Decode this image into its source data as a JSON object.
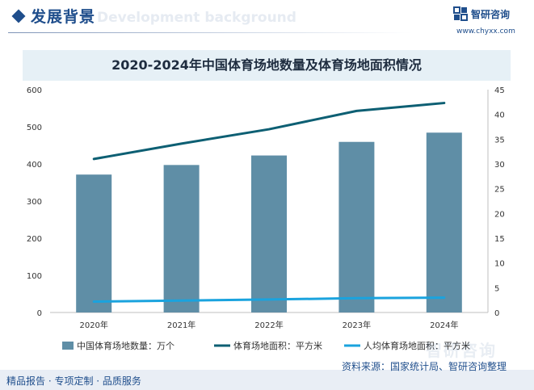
{
  "header": {
    "title": "发展背景",
    "subtitle": "Development background"
  },
  "logo": {
    "name": "智研咨询",
    "url": "www.chyxx.com"
  },
  "watermark": "智研咨询",
  "chart_data": {
    "type": "bar+line",
    "title": "2020-2024年中国体育场地数量及体育场地面积情况",
    "categories": [
      "2020年",
      "2021年",
      "2022年",
      "2023年",
      "2024年"
    ],
    "series": [
      {
        "name": "中国体育场地数量：万个",
        "type": "bar",
        "axis": "left",
        "color": "#5f8ea6",
        "values": [
          371.3,
          397.1,
          422.7,
          459.3,
          484.2
        ]
      },
      {
        "name": "体育场地面积：平方米",
        "type": "line",
        "axis": "right",
        "color": "#0d5f73",
        "values": [
          31.0,
          34.1,
          37.0,
          40.7,
          42.3
        ]
      },
      {
        "name": "人均体育场地面积：平方米",
        "type": "line",
        "axis": "right",
        "color": "#1aa3de",
        "values": [
          2.2,
          2.41,
          2.62,
          2.89,
          3.0
        ]
      }
    ],
    "y_left": {
      "min": 0,
      "max": 600,
      "ticks": [
        "0",
        "100",
        "200",
        "300",
        "400",
        "500",
        "600"
      ]
    },
    "y_right": {
      "min": 0,
      "max": 45,
      "ticks": [
        "0",
        "5",
        "10",
        "15",
        "20",
        "25",
        "30",
        "35",
        "40",
        "45"
      ]
    },
    "legend": "bottom",
    "grid": false
  },
  "footer": {
    "left": "精品报告 · 专项定制 · 品质服务",
    "source": "资料来源：国家统计局、智研咨询整理"
  }
}
